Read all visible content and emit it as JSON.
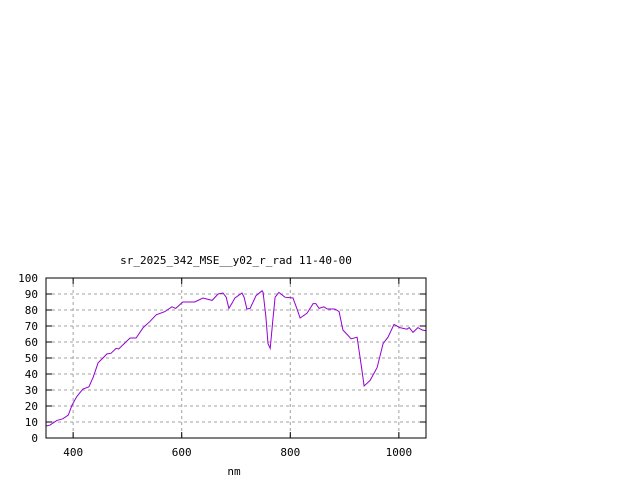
{
  "chart_data": {
    "type": "line",
    "title": "sr_2025_342_MSE__y02_r_rad 11-40-00",
    "xlabel": "nm",
    "ylabel": "",
    "xlim": [
      350,
      1050
    ],
    "ylim": [
      0,
      100
    ],
    "xticks": [
      400,
      600,
      800,
      1000
    ],
    "yticks": [
      0,
      10,
      20,
      30,
      40,
      50,
      60,
      70,
      80,
      90,
      100
    ],
    "grid": true,
    "line_color": "#9400d3",
    "series": [
      {
        "x": [
          350,
          357,
          370,
          381,
          391,
          398,
          407,
          418,
          429,
          437,
          446,
          455,
          462,
          470,
          479,
          484,
          494,
          505,
          516,
          529,
          542,
          553,
          569,
          582,
          589,
          602,
          624,
          639,
          656,
          667,
          676,
          682,
          687,
          694,
          698,
          711,
          715,
          720,
          726,
          737,
          748,
          750,
          755,
          759,
          763,
          768,
          772,
          779,
          790,
          805,
          812,
          818,
          831,
          842,
          847,
          853,
          862,
          868,
          882,
          890,
          897,
          904,
          912,
          923,
          932,
          936,
          947,
          960,
          971,
          980,
          991,
          1002,
          1015,
          1019,
          1026,
          1035,
          1043,
          1050
        ],
        "y": [
          7.5,
          8,
          11,
          12,
          14.4,
          20.6,
          26,
          30.6,
          32,
          38,
          47,
          50,
          52.5,
          53,
          56,
          55.6,
          59,
          62.5,
          62.5,
          69,
          73,
          77,
          79,
          82,
          81,
          85,
          85,
          87.5,
          86,
          90,
          90.6,
          88,
          81,
          85,
          87.5,
          90.6,
          88,
          80.6,
          81,
          89,
          92,
          91,
          75.6,
          59,
          56,
          74,
          88,
          91,
          88,
          87.5,
          81,
          75,
          78,
          84,
          84,
          81,
          82,
          80.6,
          80.6,
          79,
          67.5,
          65,
          62,
          63,
          42.5,
          32.5,
          36,
          44,
          59,
          63,
          71,
          69,
          68,
          69,
          66,
          69,
          67.5,
          67
        ]
      }
    ]
  }
}
